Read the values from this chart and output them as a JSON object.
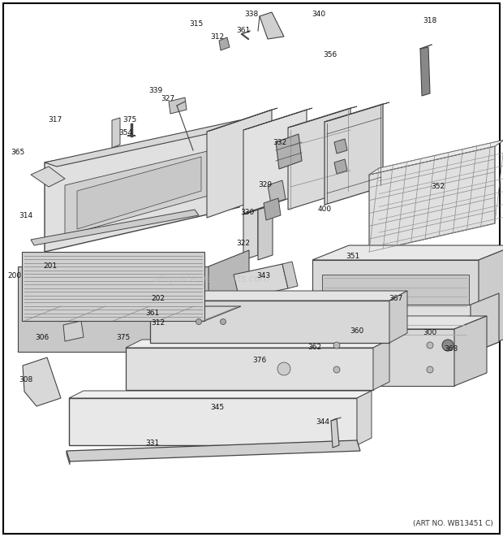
{
  "art_no": "(ART NO. WB13451 C)",
  "watermark": "eReplacementParts.com",
  "bg_color": "#ffffff",
  "border_color": "#000000",
  "fig_width": 6.2,
  "fig_height": 6.61,
  "dpi": 100,
  "labels": [
    [
      "338",
      310,
      18
    ],
    [
      "340",
      393,
      18
    ],
    [
      "318",
      530,
      25
    ],
    [
      "315",
      242,
      30
    ],
    [
      "312",
      268,
      45
    ],
    [
      "361",
      300,
      38
    ],
    [
      "356",
      407,
      68
    ],
    [
      "317",
      68,
      148
    ],
    [
      "375",
      160,
      148
    ],
    [
      "354",
      155,
      163
    ],
    [
      "339",
      192,
      112
    ],
    [
      "327",
      207,
      122
    ],
    [
      "332",
      345,
      175
    ],
    [
      "329",
      327,
      228
    ],
    [
      "330",
      305,
      262
    ],
    [
      "322",
      300,
      300
    ],
    [
      "365",
      22,
      188
    ],
    [
      "314",
      32,
      265
    ],
    [
      "352",
      540,
      230
    ],
    [
      "400",
      400,
      258
    ],
    [
      "351",
      435,
      315
    ],
    [
      "343",
      325,
      340
    ],
    [
      "367",
      488,
      368
    ],
    [
      "200",
      18,
      340
    ],
    [
      "201",
      62,
      328
    ],
    [
      "202",
      195,
      368
    ],
    [
      "300",
      530,
      410
    ],
    [
      "368",
      556,
      430
    ],
    [
      "312",
      195,
      398
    ],
    [
      "361",
      188,
      385
    ],
    [
      "375",
      152,
      415
    ],
    [
      "306",
      52,
      415
    ],
    [
      "360",
      440,
      408
    ],
    [
      "362",
      388,
      428
    ],
    [
      "308",
      32,
      468
    ],
    [
      "376",
      320,
      443
    ],
    [
      "345",
      268,
      502
    ],
    [
      "344",
      398,
      520
    ],
    [
      "331",
      188,
      545
    ]
  ]
}
